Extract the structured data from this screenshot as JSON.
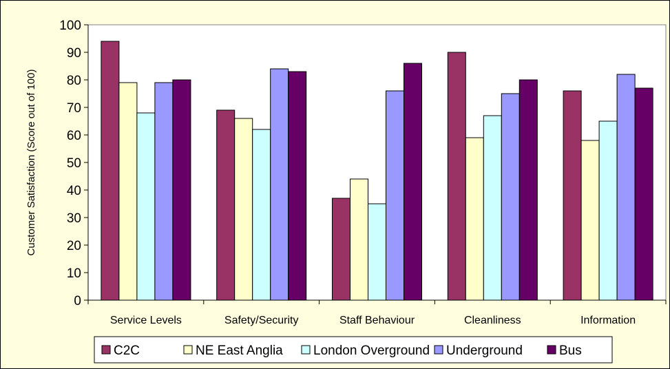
{
  "chart_data": {
    "type": "bar",
    "title": "",
    "xlabel": "",
    "ylabel": "Customer Satisfaction (Score out of 100)",
    "ylim": [
      0,
      100
    ],
    "yticks": [
      0,
      10,
      20,
      30,
      40,
      50,
      60,
      70,
      80,
      90,
      100
    ],
    "grid": false,
    "legend_position": "bottom",
    "categories": [
      "Service Levels",
      "Safety/Security",
      "Staff Behaviour",
      "Cleanliness",
      "Information"
    ],
    "series": [
      {
        "name": "C2C",
        "color": "#993366",
        "values": [
          94,
          69,
          37,
          90,
          76
        ]
      },
      {
        "name": "NE East Anglia",
        "color": "#ffffcc",
        "values": [
          79,
          66,
          44,
          59,
          58
        ]
      },
      {
        "name": "London Overground",
        "color": "#ccffff",
        "values": [
          68,
          62,
          35,
          67,
          65
        ]
      },
      {
        "name": "Underground",
        "color": "#9999ff",
        "values": [
          79,
          84,
          76,
          75,
          82
        ]
      },
      {
        "name": "Bus",
        "color": "#660066",
        "values": [
          80,
          83,
          86,
          80,
          77
        ]
      }
    ],
    "plot_background": "#ffffff",
    "page_background": "#ffffe0"
  }
}
